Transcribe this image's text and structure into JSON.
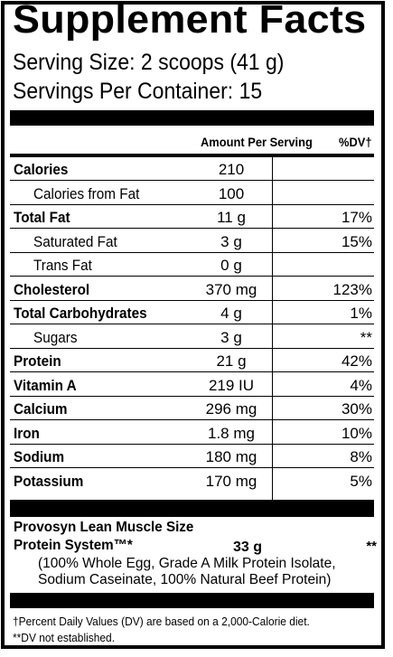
{
  "title": "Supplement Facts",
  "serving_size": "Serving Size:  2 scoops (41 g)",
  "servings_per_container": "Servings Per Container: 15",
  "columns": {
    "amount": "Amount Per Serving",
    "dv": "%DV†"
  },
  "rows": [
    {
      "name": "Calories",
      "amount": "210",
      "dv": ""
    },
    {
      "name": "Calories from Fat",
      "amount": "100",
      "dv": ""
    },
    {
      "name": "Total Fat",
      "amount": "11 g",
      "dv": "17%"
    },
    {
      "name": "Saturated Fat",
      "amount": "3 g",
      "dv": "15%"
    },
    {
      "name": "Trans Fat",
      "amount": "0 g",
      "dv": ""
    },
    {
      "name": "Cholesterol",
      "amount": "370 mg",
      "dv": "123%"
    },
    {
      "name": "Total Carbohydrates",
      "amount": "4 g",
      "dv": "1%"
    },
    {
      "name": "Sugars",
      "amount": "3 g",
      "dv": "**"
    },
    {
      "name": "Protein",
      "amount": "21 g",
      "dv": "42%"
    },
    {
      "name": "Vitamin A",
      "amount": "219 IU",
      "dv": "4%"
    },
    {
      "name": "Calcium",
      "amount": "296 mg",
      "dv": "30%"
    },
    {
      "name": "Iron",
      "amount": "1.8 mg",
      "dv": "10%"
    },
    {
      "name": "Sodium",
      "amount": "180 mg",
      "dv": "8%"
    },
    {
      "name": "Potassium",
      "amount": "170 mg",
      "dv": "5%"
    }
  ],
  "blend": {
    "name_line1": "Provosyn Lean Muscle Size",
    "name_line2": "Protein System™*",
    "amount": "33 g",
    "dv": "**",
    "desc_line1": "(100% Whole Egg, Grade A Milk Protein Isolate,",
    "desc_line2": "Sodium Caseinate, 100% Natural Beef Protein)"
  },
  "footnotes": [
    "†Percent Daily Values (DV) are based on a 2,000-Calorie diet.",
    "**DV not established."
  ]
}
